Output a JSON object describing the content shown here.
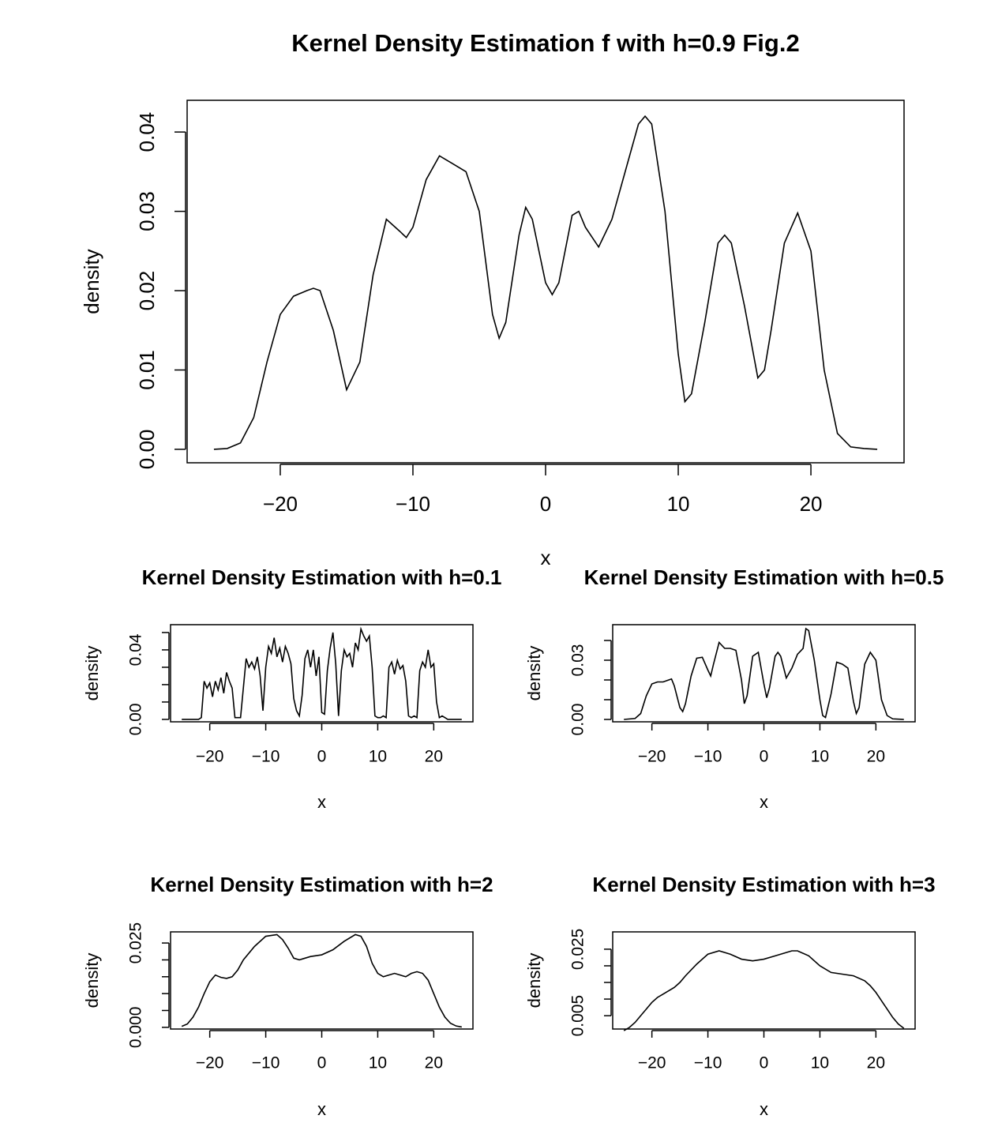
{
  "chart_data": [
    {
      "type": "line",
      "title": "Kernel Density Estimation f with h=0.9 Fig.2",
      "xlabel": "x",
      "ylabel": "density",
      "color": "#000000",
      "x": [
        -25,
        -24,
        -23,
        -22,
        -21,
        -20,
        -19,
        -18,
        -17.5,
        -17,
        -16,
        -15,
        -14,
        -13,
        -12,
        -11,
        -10.5,
        -10,
        -9,
        -8,
        -7,
        -6,
        -5,
        -4,
        -3.5,
        -3,
        -2,
        -1.5,
        -1,
        0,
        0.5,
        1,
        2,
        2.5,
        3,
        4,
        5,
        6,
        7,
        7.5,
        8,
        9,
        10,
        10.5,
        11,
        12,
        13,
        13.5,
        14,
        15,
        16,
        16.5,
        17,
        18,
        19,
        20,
        21,
        22,
        23,
        24,
        25
      ],
      "values": [
        0,
        0.0001,
        0.0008,
        0.004,
        0.011,
        0.017,
        0.0193,
        0.02,
        0.0203,
        0.02,
        0.015,
        0.0075,
        0.011,
        0.022,
        0.029,
        0.0275,
        0.0267,
        0.028,
        0.034,
        0.037,
        0.036,
        0.035,
        0.03,
        0.017,
        0.014,
        0.016,
        0.027,
        0.0305,
        0.029,
        0.021,
        0.0195,
        0.021,
        0.0295,
        0.03,
        0.028,
        0.0255,
        0.029,
        0.035,
        0.041,
        0.042,
        0.041,
        0.03,
        0.012,
        0.006,
        0.007,
        0.016,
        0.026,
        0.027,
        0.026,
        0.018,
        0.009,
        0.01,
        0.015,
        0.026,
        0.0298,
        0.025,
        0.01,
        0.002,
        0.0003,
        0.0001,
        0
      ],
      "xlim": [
        -27.02,
        27.02
      ],
      "ylim": [
        -0.0017,
        0.044
      ],
      "xticks": [
        {
          "value": -20,
          "label": "−20"
        },
        {
          "value": -10,
          "label": "−10"
        },
        0,
        10,
        20
      ],
      "yticks": [
        {
          "value": 0,
          "label": "0.00"
        },
        0.01,
        0.02,
        0.03,
        0.04
      ]
    },
    {
      "type": "line",
      "title": "Kernel Density Estimation with h=0.1",
      "xlabel": "x",
      "ylabel": "density",
      "color": "#000000",
      "x": [
        -25,
        -24.5,
        -24,
        -23.5,
        -23,
        -22.5,
        -22,
        -21.5,
        -21,
        -20.5,
        -20,
        -19.5,
        -19,
        -18.5,
        -18,
        -17.5,
        -17,
        -16.5,
        -16,
        -15.5,
        -15,
        -14.5,
        -14,
        -13.5,
        -13,
        -12.5,
        -12,
        -11.5,
        -11,
        -10.5,
        -10,
        -9.5,
        -9,
        -8.5,
        -8,
        -7.5,
        -7,
        -6.5,
        -6,
        -5.5,
        -5,
        -4.5,
        -4,
        -3.5,
        -3,
        -2.5,
        -2,
        -1.5,
        -1,
        -0.5,
        0,
        0.5,
        1,
        1.5,
        2,
        2.5,
        3,
        3.5,
        4,
        4.5,
        5,
        5.5,
        6,
        6.5,
        7,
        7.5,
        8,
        8.5,
        9,
        9.5,
        10,
        10.5,
        11,
        11.5,
        12,
        12.5,
        13,
        13.5,
        14,
        14.5,
        15,
        15.5,
        16,
        16.5,
        17,
        17.5,
        18,
        18.5,
        19,
        19.5,
        20,
        20.5,
        21,
        21.5,
        22,
        22.5,
        23,
        23.5,
        24,
        24.5,
        25
      ],
      "values": [
        0,
        0,
        0,
        0,
        0,
        0,
        0,
        0.001,
        0.022,
        0.018,
        0.021,
        0.013,
        0.022,
        0.017,
        0.024,
        0.015,
        0.027,
        0.022,
        0.018,
        0.001,
        0.001,
        0.001,
        0.018,
        0.035,
        0.03,
        0.033,
        0.029,
        0.036,
        0.025,
        0.005,
        0.03,
        0.042,
        0.038,
        0.047,
        0.036,
        0.041,
        0.033,
        0.042,
        0.038,
        0.032,
        0.012,
        0.005,
        0.002,
        0.014,
        0.035,
        0.04,
        0.03,
        0.04,
        0.025,
        0.036,
        0.004,
        0.003,
        0.028,
        0.041,
        0.05,
        0.032,
        0.002,
        0.028,
        0.04,
        0.036,
        0.038,
        0.03,
        0.044,
        0.04,
        0.052,
        0.048,
        0.045,
        0.048,
        0.03,
        0.002,
        0.001,
        0.001,
        0.002,
        0.001,
        0.03,
        0.033,
        0.026,
        0.034,
        0.029,
        0.031,
        0.022,
        0.002,
        0.001,
        0.002,
        0.001,
        0.028,
        0.033,
        0.03,
        0.04,
        0.03,
        0.032,
        0.01,
        0.001,
        0.002,
        0.001,
        0,
        0,
        0,
        0,
        0,
        0
      ],
      "xlim": [
        -27,
        27
      ],
      "ylim": [
        -0.0014,
        0.0545
      ],
      "xticks": [
        {
          "value": -20,
          "label": "−20"
        },
        {
          "value": -10,
          "label": "−10"
        },
        0,
        10,
        20
      ],
      "yticks": [
        {
          "value": 0,
          "label": "0.00"
        },
        0.04
      ],
      "yticks_unlabeled": [
        0.01,
        0.02,
        0.03,
        0.05
      ]
    },
    {
      "type": "line",
      "title": "Kernel Density Estimation with h=0.5",
      "xlabel": "x",
      "ylabel": "density",
      "color": "#000000",
      "x": [
        -25,
        -23,
        -22,
        -21,
        -20,
        -19,
        -18,
        -17,
        -16.5,
        -16,
        -15,
        -14.5,
        -14,
        -13,
        -12,
        -11,
        -10,
        -9.5,
        -9,
        -8,
        -7,
        -6,
        -5,
        -4,
        -3.5,
        -3,
        -2,
        -1,
        0,
        0.5,
        1,
        2,
        2.5,
        3,
        4,
        5,
        6,
        7,
        7.5,
        8,
        9,
        10,
        10.5,
        11,
        12,
        13,
        14,
        15,
        16,
        16.5,
        17,
        18,
        19,
        20,
        21,
        22,
        23,
        25
      ],
      "values": [
        0,
        0.0005,
        0.003,
        0.012,
        0.018,
        0.019,
        0.019,
        0.02,
        0.0205,
        0.017,
        0.006,
        0.004,
        0.008,
        0.022,
        0.031,
        0.0315,
        0.025,
        0.022,
        0.028,
        0.039,
        0.036,
        0.036,
        0.035,
        0.02,
        0.008,
        0.012,
        0.032,
        0.034,
        0.018,
        0.011,
        0.016,
        0.032,
        0.034,
        0.032,
        0.021,
        0.026,
        0.033,
        0.036,
        0.046,
        0.045,
        0.03,
        0.01,
        0.002,
        0.001,
        0.013,
        0.029,
        0.028,
        0.026,
        0.009,
        0.003,
        0.006,
        0.028,
        0.034,
        0.03,
        0.01,
        0.002,
        0.0003,
        0
      ],
      "xlim": [
        -27,
        27
      ],
      "ylim": [
        -0.0012,
        0.048
      ],
      "xticks": [
        {
          "value": -20,
          "label": "−20"
        },
        {
          "value": -10,
          "label": "−10"
        },
        0,
        10,
        20
      ],
      "yticks": [
        {
          "value": 0,
          "label": "0.00"
        },
        0.03
      ],
      "yticks_unlabeled": [
        0.01,
        0.02,
        0.04
      ]
    },
    {
      "type": "line",
      "title": "Kernel Density Estimation with h=2",
      "xlabel": "x",
      "ylabel": "density",
      "color": "#000000",
      "x": [
        -25,
        -24,
        -23,
        -22,
        -21,
        -20,
        -19,
        -18,
        -17,
        -16,
        -15,
        -14,
        -12,
        -10,
        -8,
        -7,
        -6,
        -5,
        -4,
        -3,
        -2,
        0,
        2,
        4,
        6,
        7,
        8,
        9,
        10,
        11,
        12,
        13,
        14,
        15,
        16,
        17,
        18,
        19,
        20,
        21,
        22,
        23,
        24,
        25
      ],
      "values": [
        0.0003,
        0.001,
        0.003,
        0.006,
        0.01,
        0.0135,
        0.0155,
        0.0148,
        0.0145,
        0.015,
        0.017,
        0.02,
        0.024,
        0.027,
        0.0275,
        0.026,
        0.0235,
        0.0205,
        0.02,
        0.0205,
        0.021,
        0.0215,
        0.023,
        0.0255,
        0.0275,
        0.027,
        0.024,
        0.019,
        0.016,
        0.015,
        0.0155,
        0.016,
        0.0155,
        0.015,
        0.016,
        0.0165,
        0.016,
        0.014,
        0.01,
        0.006,
        0.003,
        0.0012,
        0.0004,
        0.0001
      ],
      "xlim": [
        -27,
        27
      ],
      "ylim": [
        -0.0005,
        0.0283
      ],
      "xticks": [
        {
          "value": -20,
          "label": "−20"
        },
        {
          "value": -10,
          "label": "−10"
        },
        0,
        10,
        20
      ],
      "yticks": [
        {
          "value": 0,
          "label": "0.000"
        },
        0.025
      ],
      "yticks_unlabeled": [
        0.005,
        0.01,
        0.015,
        0.02
      ]
    },
    {
      "type": "line",
      "title": "Kernel Density Estimation with h=3",
      "xlabel": "x",
      "ylabel": "density",
      "color": "#000000",
      "x": [
        -25,
        -24,
        -23,
        -22,
        -21,
        -20,
        -19,
        -18,
        -17,
        -16,
        -15,
        -14,
        -12,
        -10,
        -8,
        -6,
        -4,
        -2,
        0,
        2,
        4,
        5,
        6,
        8,
        10,
        12,
        14,
        16,
        18,
        19,
        20,
        21,
        22,
        23,
        24,
        25
      ],
      "values": [
        0.0005,
        0.0015,
        0.003,
        0.005,
        0.007,
        0.009,
        0.0105,
        0.0115,
        0.0125,
        0.0135,
        0.015,
        0.017,
        0.0205,
        0.0235,
        0.0245,
        0.0235,
        0.022,
        0.0215,
        0.022,
        0.023,
        0.024,
        0.0245,
        0.0245,
        0.023,
        0.02,
        0.018,
        0.0175,
        0.017,
        0.0155,
        0.014,
        0.012,
        0.0095,
        0.007,
        0.0045,
        0.0025,
        0.0012
      ],
      "xlim": [
        -27,
        27
      ],
      "ylim": [
        0.001,
        0.0302
      ],
      "xticks": [
        {
          "value": -20,
          "label": "−20"
        },
        {
          "value": -10,
          "label": "−10"
        },
        0,
        10,
        20
      ],
      "yticks": [
        0.005,
        0.025
      ],
      "yticks_unlabeled": [
        0.01,
        0.015,
        0.02
      ]
    }
  ]
}
